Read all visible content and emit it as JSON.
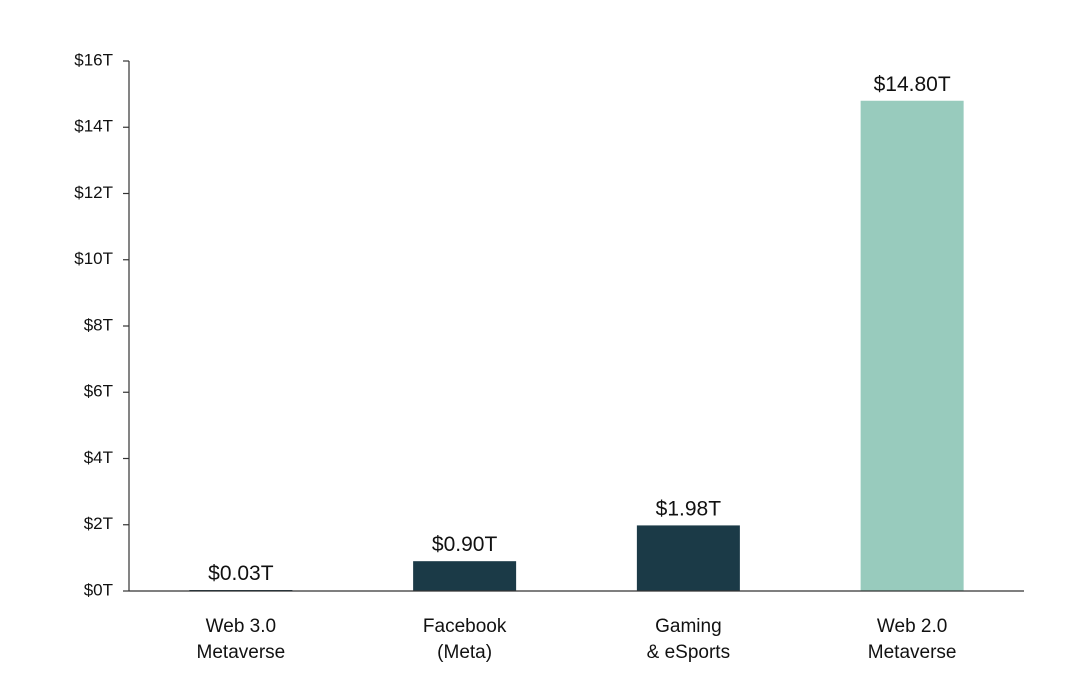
{
  "chart_data": {
    "type": "bar",
    "title": "",
    "xlabel": "",
    "ylabel": "",
    "categories": [
      [
        "Web 3.0",
        "Metaverse"
      ],
      [
        "Facebook",
        "(Meta)"
      ],
      [
        "Gaming",
        "& eSports"
      ],
      [
        "Web 2.0",
        "Metaverse"
      ]
    ],
    "values": [
      0.03,
      0.9,
      1.98,
      14.8
    ],
    "value_labels": [
      "$0.03T",
      "$0.90T",
      "$1.98T",
      "$14.80T"
    ],
    "bar_colors": [
      "#1b3a47",
      "#1b3a47",
      "#1b3a47",
      "#98cbbd"
    ],
    "ylim": [
      0,
      16
    ],
    "yticks": [
      0,
      2,
      4,
      6,
      8,
      10,
      12,
      14,
      16
    ],
    "ytick_labels": [
      "$0T",
      "$2T",
      "$4T",
      "$6T",
      "$8T",
      "$10T",
      "$12T",
      "$14T",
      "$16T"
    ],
    "grid": false,
    "legend": "none"
  }
}
